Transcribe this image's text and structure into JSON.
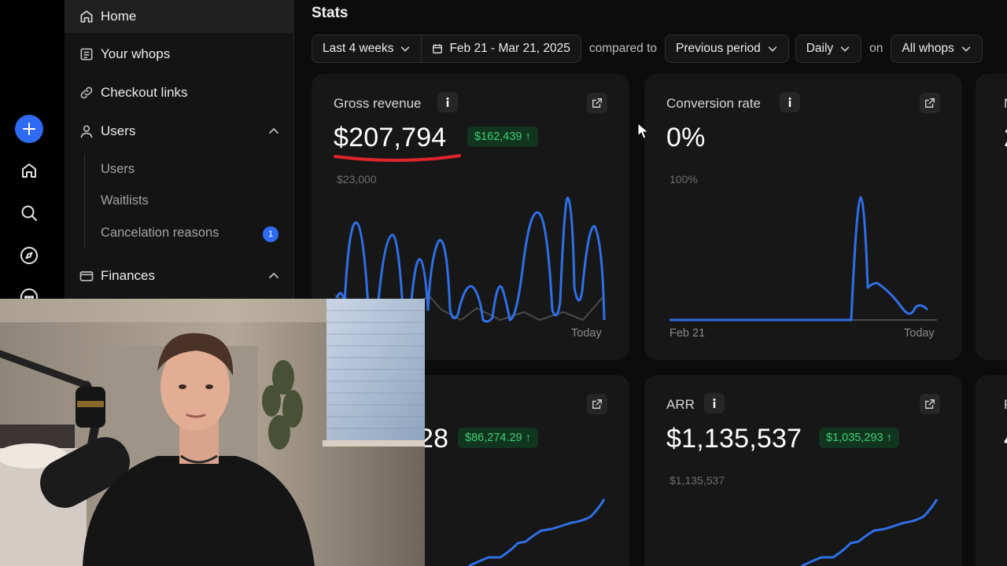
{
  "sidebar": {
    "home": "Home",
    "your_whops": "Your whops",
    "checkout_links": "Checkout links",
    "users": "Users",
    "users_sub": [
      "Users",
      "Waitlists",
      "Cancelation reasons"
    ],
    "cancelation_badge": "1",
    "finances": "Finances"
  },
  "page_title": "Stats",
  "filters": {
    "range": "Last 4 weeks",
    "dates": "Feb 21 - Mar 21, 2025",
    "compared_to": "compared to",
    "comparison": "Previous period",
    "interval": "Daily",
    "on": "on",
    "scope": "All whops"
  },
  "cards": {
    "gross_revenue": {
      "label": "Gross revenue",
      "value": "$207,794",
      "delta": "$162,439 ↑",
      "axis_max": "$23,000",
      "axis_end": "Today"
    },
    "conversion_rate": {
      "label": "Conversion rate",
      "value": "0%",
      "axis_max": "100%",
      "axis_start": "Feb 21",
      "axis_end": "Today"
    },
    "mrr": {
      "value_partial": "28",
      "delta": "$86,274.29 ↑"
    },
    "arr": {
      "label": "ARR",
      "value": "$1,135,537",
      "delta": "$1,035,293 ↑",
      "axis_max": "$1,135,537"
    },
    "cut_card_top": {
      "label_partial": "N",
      "value_partial": "2"
    },
    "cut_card_bottom": {
      "label_partial": "P",
      "value_partial": "4"
    }
  },
  "colors": {
    "accent_blue": "#2f6bf2",
    "line_blue": "#2f6fe8",
    "comparison_line": "#4a4a4a",
    "positive_green": "#3fcf75",
    "annotation_red": "#e0242c"
  },
  "icons": {
    "rail": [
      "plus-icon",
      "home-icon",
      "search-icon",
      "compass-icon",
      "chat-icon"
    ],
    "sidebar": [
      "home-icon",
      "whops-icon",
      "link-icon",
      "user-icon",
      "card-icon"
    ]
  }
}
